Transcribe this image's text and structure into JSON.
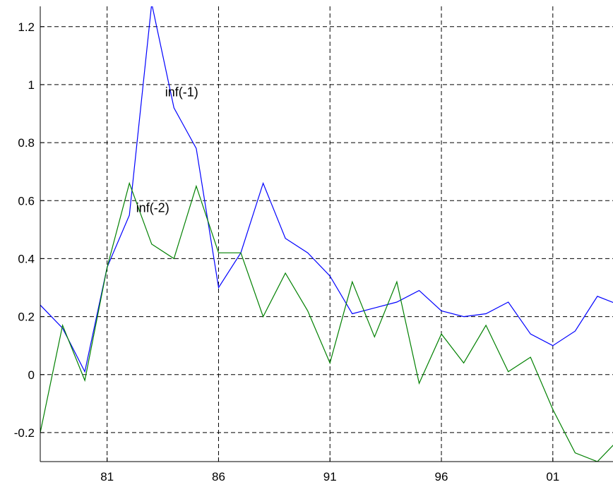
{
  "chart_data": {
    "type": "line",
    "title": "",
    "xlabel": "",
    "ylabel": "",
    "xlim": [
      1978,
      2003.7
    ],
    "ylim": [
      -0.3,
      1.27
    ],
    "grid": true,
    "x_ticks": [
      1981,
      1986,
      1991,
      1996,
      2001
    ],
    "x_tick_labels": [
      "81",
      "86",
      "91",
      "96",
      "01"
    ],
    "y_ticks": [
      -0.2,
      0,
      0.2,
      0.4,
      0.6,
      0.8,
      1,
      1.2
    ],
    "y_tick_labels": [
      "-0.2",
      "0",
      "0.2",
      "0.4",
      "0.6",
      "0.8",
      "1",
      "1.2"
    ],
    "x": [
      1978,
      1979,
      1980,
      1981,
      1982,
      1983,
      1984,
      1985,
      1986,
      1987,
      1988,
      1989,
      1990,
      1991,
      1992,
      1993,
      1994,
      1995,
      1996,
      1997,
      1998,
      1999,
      2000,
      2001,
      2002,
      2003,
      2004
    ],
    "series": [
      {
        "label": "inf(-1)",
        "color": "#0000ff",
        "x": [
          1977.5,
          1978,
          1979,
          1980,
          1981,
          1982,
          1983,
          1984,
          1985,
          1986,
          1987,
          1988,
          1989,
          1990,
          1991,
          1992,
          1993,
          1994,
          1995,
          1996,
          1997,
          1998,
          1999,
          2000,
          2001,
          2002,
          2003,
          2004
        ],
        "values": [
          0.25,
          0.24,
          0.16,
          0.01,
          0.37,
          0.55,
          1.28,
          0.92,
          0.78,
          0.3,
          0.42,
          0.66,
          0.47,
          0.42,
          0.34,
          0.21,
          0.23,
          0.25,
          0.29,
          0.22,
          0.2,
          0.21,
          0.25,
          0.14,
          0.1,
          0.15,
          0.27,
          0.24
        ]
      },
      {
        "label": "inf(-2)",
        "color": "#008000",
        "x": [
          1978,
          1979,
          1980,
          1981,
          1982,
          1983,
          1984,
          1985,
          1986,
          1987,
          1988,
          1989,
          1990,
          1991,
          1992,
          1993,
          1994,
          1995,
          1996,
          1997,
          1998,
          1999,
          2000,
          2001,
          2002,
          2003,
          2004
        ],
        "values": [
          -0.2,
          0.17,
          -0.02,
          0.37,
          0.66,
          0.45,
          0.4,
          0.65,
          0.42,
          0.42,
          0.2,
          0.35,
          0.22,
          0.04,
          0.32,
          0.13,
          0.32,
          -0.03,
          0.14,
          0.04,
          0.17,
          0.01,
          0.06,
          -0.12,
          -0.27,
          -0.3,
          -0.22
        ]
      }
    ],
    "annotations": [
      {
        "text": "inf(-1)",
        "x": 1983.6,
        "y": 0.96
      },
      {
        "text": "inf(-2)",
        "x": 1982.3,
        "y": 0.56
      }
    ]
  }
}
